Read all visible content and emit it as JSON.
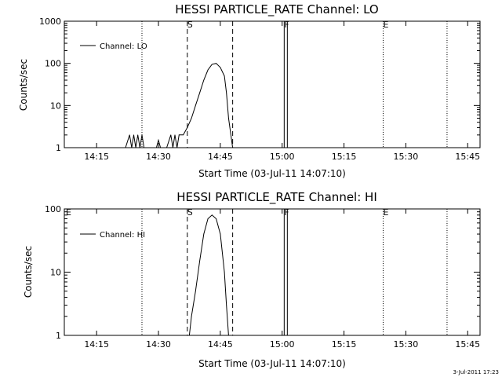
{
  "footer": {
    "timestamp": "3-Jul-2011 17:23"
  },
  "colors": {
    "line": "#000000",
    "background": "#ffffff"
  },
  "chart_data": [
    {
      "type": "line",
      "title": "HESSI PARTICLE_RATE Channel: LO",
      "xlabel": "Start Time (03-Jul-11 14:07:10)",
      "ylabel": "Counts/sec",
      "yscale": "log",
      "ylim": [
        1,
        1000
      ],
      "yticks": [
        1,
        10,
        100,
        1000
      ],
      "ytick_labels": [
        "1",
        "10",
        "100",
        "1000"
      ],
      "xlim": [
        "14:07:10",
        "15:48:00"
      ],
      "xtick_labels": [
        "14:15",
        "14:30",
        "14:45",
        "15:00",
        "15:15",
        "15:30",
        "15:45"
      ],
      "grid": false,
      "legend": "top-left",
      "series": [
        {
          "name": "Channel: LO",
          "x": [
            "14:07:10",
            "14:20:00",
            "14:22:00",
            "14:23:00",
            "14:23:30",
            "14:24:00",
            "14:24:30",
            "14:25:00",
            "14:25:30",
            "14:26:00",
            "14:26:30",
            "14:27:00",
            "14:28:00",
            "14:29:30",
            "14:30:00",
            "14:30:30",
            "14:32:00",
            "14:33:00",
            "14:33:30",
            "14:34:00",
            "14:34:30",
            "14:35:00",
            "14:36:00",
            "14:37:00",
            "14:38:00",
            "14:39:00",
            "14:40:00",
            "14:41:00",
            "14:42:00",
            "14:43:00",
            "14:44:00",
            "14:45:00",
            "14:46:00",
            "14:46:30",
            "14:47:00",
            "14:48:00"
          ],
          "values": [
            1,
            1,
            1,
            2,
            1,
            2,
            1,
            2,
            1,
            2,
            1,
            1,
            1,
            1,
            1.5,
            1,
            1,
            2,
            1,
            2,
            1,
            2,
            2,
            3,
            5,
            10,
            20,
            40,
            70,
            95,
            100,
            80,
            50,
            20,
            5,
            1
          ]
        }
      ],
      "annotations": [
        {
          "label": "S",
          "time": "14:37:00",
          "style": "dashed"
        },
        {
          "label": "",
          "time": "14:48:00",
          "style": "dashed"
        },
        {
          "label": "F",
          "time": "15:00:30",
          "style": "solid"
        },
        {
          "label": "E",
          "time": "15:24:30",
          "style": "dotted"
        },
        {
          "label": "",
          "time": "14:26:00",
          "style": "dotted"
        },
        {
          "label": "",
          "time": "15:40:00",
          "style": "dotted"
        }
      ]
    },
    {
      "type": "line",
      "title": "HESSI PARTICLE_RATE Channel: HI",
      "xlabel": "Start Time (03-Jul-11 14:07:10)",
      "ylabel": "Counts/sec",
      "yscale": "log",
      "ylim": [
        1,
        100
      ],
      "yticks": [
        1,
        10,
        100
      ],
      "ytick_labels": [
        "1",
        "10",
        "100"
      ],
      "xlim": [
        "14:07:10",
        "15:48:00"
      ],
      "xtick_labels": [
        "14:15",
        "14:30",
        "14:45",
        "15:00",
        "15:15",
        "15:30",
        "15:45"
      ],
      "grid": false,
      "legend": "top-left",
      "series": [
        {
          "name": "Channel: HI",
          "x": [
            "14:37:30",
            "14:38:00",
            "14:39:00",
            "14:40:00",
            "14:41:00",
            "14:42:00",
            "14:43:00",
            "14:44:00",
            "14:45:00",
            "14:46:00",
            "14:46:30",
            "14:47:00"
          ],
          "values": [
            1,
            2,
            5,
            15,
            40,
            70,
            80,
            70,
            40,
            10,
            3,
            1
          ]
        }
      ],
      "annotations": [
        {
          "label": "E",
          "time": "14:07:10",
          "style": "dotted"
        },
        {
          "label": "S",
          "time": "14:37:00",
          "style": "dashed"
        },
        {
          "label": "",
          "time": "14:48:00",
          "style": "dashed"
        },
        {
          "label": "F",
          "time": "15:00:30",
          "style": "solid"
        },
        {
          "label": "E",
          "time": "15:24:30",
          "style": "dotted"
        },
        {
          "label": "",
          "time": "14:26:00",
          "style": "dotted"
        },
        {
          "label": "",
          "time": "15:40:00",
          "style": "dotted"
        }
      ]
    }
  ]
}
